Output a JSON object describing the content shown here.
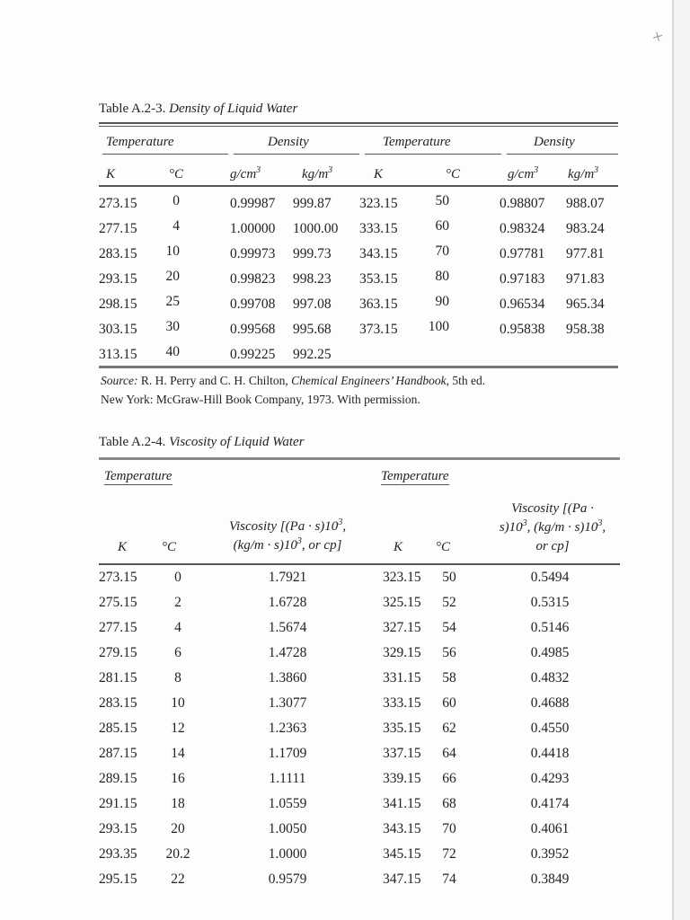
{
  "corner_mark": "+",
  "density_table": {
    "title_prefix": "Table A.2-3.",
    "title_name": "Density of Liquid Water",
    "group_headers": [
      "Temperature",
      "Density",
      "Temperature",
      "Density"
    ],
    "sub_headers": {
      "k": "K",
      "c": "°C",
      "gcm": "g/cm",
      "kgm": "kg/m",
      "exp": "3"
    },
    "rows": [
      [
        "273.15",
        "0",
        "0.99987",
        "999.87",
        "323.15",
        "50",
        "0.98807",
        "988.07"
      ],
      [
        "277.15",
        "4",
        "1.00000",
        "1000.00",
        "333.15",
        "60",
        "0.98324",
        "983.24"
      ],
      [
        "283.15",
        "10",
        "0.99973",
        "999.73",
        "343.15",
        "70",
        "0.97781",
        "977.81"
      ],
      [
        "293.15",
        "20",
        "0.99823",
        "998.23",
        "353.15",
        "80",
        "0.97183",
        "971.83"
      ],
      [
        "298.15",
        "25",
        "0.99708",
        "997.08",
        "363.15",
        "90",
        "0.96534",
        "965.34"
      ],
      [
        "303.15",
        "30",
        "0.99568",
        "995.68",
        "373.15",
        "100",
        "0.95838",
        "958.38"
      ],
      [
        "313.15",
        "40",
        "0.99225",
        "992.25",
        "",
        "",
        "",
        ""
      ]
    ],
    "source": {
      "label": "Source:",
      "authors": " R. H. Perry and C. H. Chilton, ",
      "book": "Chemical Engineers’ Handbook",
      "edition": ", 5th ed.",
      "line2": "New York: McGraw-Hill Book Company, 1973. With permission."
    }
  },
  "viscosity_table": {
    "title_prefix": "Table A.2-4.",
    "title_name": "Viscosity of Liquid Water",
    "group_header": "Temperature",
    "k": "K",
    "c": "°C",
    "left_visc_header": [
      "Viscosity [(Pa · s)10",
      "3",
      ",",
      "(kg/m · s)10",
      "3",
      ", or cp]"
    ],
    "right_visc_header": [
      "Viscosity [(Pa ·",
      "s)10",
      "3",
      ", (kg/m · s)10",
      "3",
      ",",
      "or cp]"
    ],
    "rows": [
      [
        "273.15",
        "0",
        "1.7921",
        "323.15",
        "50",
        "0.5494"
      ],
      [
        "275.15",
        "2",
        "1.6728",
        "325.15",
        "52",
        "0.5315"
      ],
      [
        "277.15",
        "4",
        "1.5674",
        "327.15",
        "54",
        "0.5146"
      ],
      [
        "279.15",
        "6",
        "1.4728",
        "329.15",
        "56",
        "0.4985"
      ],
      [
        "281.15",
        "8",
        "1.3860",
        "331.15",
        "58",
        "0.4832"
      ],
      [
        "283.15",
        "10",
        "1.3077",
        "333.15",
        "60",
        "0.4688"
      ],
      [
        "285.15",
        "12",
        "1.2363",
        "335.15",
        "62",
        "0.4550"
      ],
      [
        "287.15",
        "14",
        "1.1709",
        "337.15",
        "64",
        "0.4418"
      ],
      [
        "289.15",
        "16",
        "1.1111",
        "339.15",
        "66",
        "0.4293"
      ],
      [
        "291.15",
        "18",
        "1.0559",
        "341.15",
        "68",
        "0.4174"
      ],
      [
        "293.15",
        "20",
        "1.0050",
        "343.15",
        "70",
        "0.4061"
      ],
      [
        "293.35",
        "20.2",
        "1.0000",
        "345.15",
        "72",
        "0.3952"
      ],
      [
        "295.15",
        "22",
        "0.9579",
        "347.15",
        "74",
        "0.3849"
      ]
    ]
  }
}
